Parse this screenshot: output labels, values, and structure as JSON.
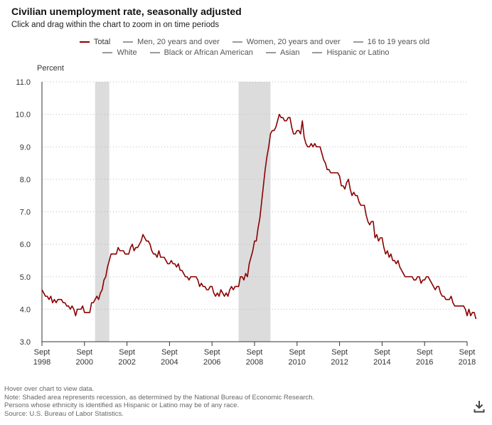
{
  "title": "Civilian unemployment rate, seasonally adjusted",
  "subtitle": "Click and drag within the chart to zoom in on time periods",
  "legend": {
    "row1": [
      {
        "label": "Total",
        "active": true
      },
      {
        "label": "Men, 20 years and over",
        "active": false
      },
      {
        "label": "Women, 20 years and over",
        "active": false
      },
      {
        "label": "16 to 19 years old",
        "active": false
      }
    ],
    "row2": [
      {
        "label": "White",
        "active": false
      },
      {
        "label": "Black or African American",
        "active": false
      },
      {
        "label": "Asian",
        "active": false
      },
      {
        "label": "Hispanic or Latino",
        "active": false
      }
    ]
  },
  "footer": {
    "hover": "Hover over chart to view data.",
    "note1": "Note: Shaded area represents recession, as determined by the National Bureau of Economic Research.",
    "note2": "Persons whose ethnicity is identified as Hispanic or Latino may be of any race.",
    "source": "Source: U.S. Bureau of Labor Statistics."
  },
  "colors": {
    "series": "#8b0000",
    "recession": "#dcdcdc",
    "grid": "#bbbbbb",
    "axis": "#333333"
  },
  "icons": {
    "download": "download-icon"
  },
  "chart_data": {
    "type": "line",
    "ylabel": "Percent",
    "ylim": [
      3.0,
      11.0
    ],
    "yticks": [
      3.0,
      4.0,
      5.0,
      6.0,
      7.0,
      8.0,
      9.0,
      10.0,
      11.0
    ],
    "xlim": [
      "1998-09",
      "2018-09"
    ],
    "xticks": [
      {
        "month": "Sept",
        "year": "1998",
        "date": "1998-09"
      },
      {
        "month": "Sept",
        "year": "2000",
        "date": "2000-09"
      },
      {
        "month": "Sept",
        "year": "2002",
        "date": "2002-09"
      },
      {
        "month": "Sept",
        "year": "2004",
        "date": "2004-09"
      },
      {
        "month": "Sept",
        "year": "2006",
        "date": "2006-09"
      },
      {
        "month": "Sept",
        "year": "2008",
        "date": "2008-09"
      },
      {
        "month": "Sept",
        "year": "2010",
        "date": "2010-09"
      },
      {
        "month": "Sept",
        "year": "2012",
        "date": "2012-09"
      },
      {
        "month": "Sept",
        "year": "2014",
        "date": "2014-09"
      },
      {
        "month": "Sept",
        "year": "2016",
        "date": "2016-09"
      },
      {
        "month": "Sept",
        "year": "2018",
        "date": "2018-09"
      }
    ],
    "grid": true,
    "recessions": [
      {
        "start": "2001-03",
        "end": "2001-11"
      },
      {
        "start": "2007-12",
        "end": "2009-06"
      }
    ],
    "series": [
      {
        "name": "Total",
        "start": "1998-09",
        "values": [
          4.6,
          4.5,
          4.4,
          4.4,
          4.3,
          4.4,
          4.2,
          4.3,
          4.2,
          4.3,
          4.3,
          4.3,
          4.2,
          4.2,
          4.1,
          4.1,
          4.0,
          4.1,
          4.0,
          3.8,
          4.0,
          4.0,
          4.0,
          4.1,
          3.9,
          3.9,
          3.9,
          3.9,
          4.2,
          4.2,
          4.3,
          4.4,
          4.3,
          4.5,
          4.6,
          4.9,
          5.0,
          5.3,
          5.5,
          5.7,
          5.7,
          5.7,
          5.7,
          5.9,
          5.8,
          5.8,
          5.8,
          5.7,
          5.7,
          5.7,
          5.9,
          6.0,
          5.8,
          5.9,
          5.9,
          6.0,
          6.1,
          6.3,
          6.2,
          6.1,
          6.1,
          6.0,
          5.8,
          5.7,
          5.7,
          5.6,
          5.8,
          5.6,
          5.6,
          5.6,
          5.5,
          5.4,
          5.4,
          5.5,
          5.4,
          5.4,
          5.3,
          5.4,
          5.2,
          5.2,
          5.1,
          5.0,
          5.0,
          4.9,
          5.0,
          5.0,
          5.0,
          5.0,
          4.9,
          4.7,
          4.8,
          4.7,
          4.7,
          4.6,
          4.6,
          4.7,
          4.7,
          4.5,
          4.4,
          4.5,
          4.4,
          4.6,
          4.5,
          4.4,
          4.5,
          4.4,
          4.6,
          4.7,
          4.6,
          4.7,
          4.7,
          4.7,
          5.0,
          5.0,
          4.9,
          5.1,
          5.0,
          5.4,
          5.6,
          5.8,
          6.1,
          6.1,
          6.5,
          6.8,
          7.3,
          7.8,
          8.3,
          8.7,
          9.0,
          9.4,
          9.5,
          9.5,
          9.6,
          9.8,
          10.0,
          9.9,
          9.9,
          9.8,
          9.8,
          9.9,
          9.9,
          9.6,
          9.4,
          9.4,
          9.5,
          9.5,
          9.4,
          9.8,
          9.3,
          9.1,
          9.0,
          9.0,
          9.1,
          9.0,
          9.1,
          9.0,
          9.0,
          9.0,
          8.8,
          8.6,
          8.5,
          8.3,
          8.3,
          8.2,
          8.2,
          8.2,
          8.2,
          8.2,
          8.1,
          7.8,
          7.8,
          7.7,
          7.9,
          8.0,
          7.7,
          7.5,
          7.6,
          7.5,
          7.5,
          7.3,
          7.2,
          7.2,
          7.2,
          6.9,
          6.7,
          6.6,
          6.7,
          6.7,
          6.2,
          6.3,
          6.1,
          6.2,
          6.2,
          5.9,
          5.7,
          5.8,
          5.6,
          5.7,
          5.5,
          5.5,
          5.4,
          5.5,
          5.3,
          5.2,
          5.1,
          5.0,
          5.0,
          5.0,
          5.0,
          5.0,
          4.9,
          4.9,
          5.0,
          5.0,
          4.8,
          4.9,
          4.9,
          5.0,
          5.0,
          4.9,
          4.8,
          4.7,
          4.6,
          4.7,
          4.7,
          4.5,
          4.4,
          4.4,
          4.3,
          4.3,
          4.3,
          4.4,
          4.2,
          4.1,
          4.1,
          4.1,
          4.1,
          4.1,
          4.1,
          4.0,
          3.8,
          4.0,
          3.8,
          3.9,
          3.9,
          3.7
        ]
      }
    ]
  }
}
